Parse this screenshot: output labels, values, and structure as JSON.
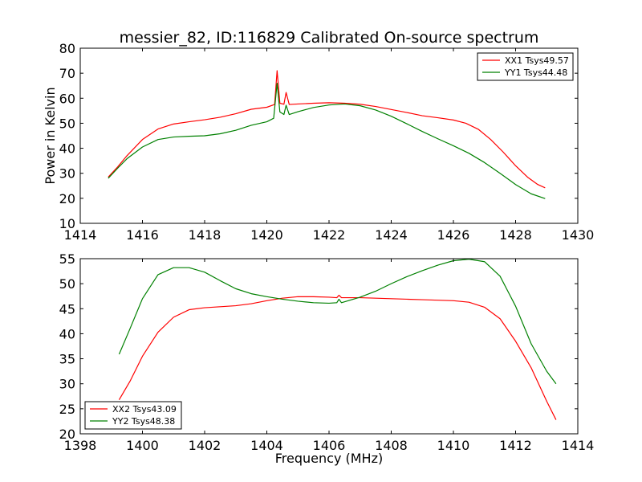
{
  "chart_data": [
    {
      "type": "line",
      "title": "messier_82, ID:116829 Calibrated On-source spectrum",
      "xlabel": "",
      "ylabel": "Power in Kelvin",
      "xlim": [
        1414,
        1430
      ],
      "ylim": [
        10,
        80
      ],
      "xticks": [
        "1414",
        "1416",
        "1418",
        "1420",
        "1422",
        "1424",
        "1426",
        "1428",
        "1430"
      ],
      "yticks": [
        "10",
        "20",
        "30",
        "40",
        "50",
        "60",
        "70",
        "80"
      ],
      "grid": false,
      "legend_position": "top-right",
      "series": [
        {
          "name": "XX1 Tsys49.57",
          "color": "#ff0000",
          "x": [
            1414.9,
            1415.2,
            1415.5,
            1416.0,
            1416.5,
            1417.0,
            1417.5,
            1418.0,
            1418.5,
            1419.0,
            1419.5,
            1420.0,
            1420.25,
            1420.33,
            1420.42,
            1420.55,
            1420.62,
            1420.72,
            1421.0,
            1421.5,
            1422.0,
            1422.5,
            1423.0,
            1423.5,
            1424.0,
            1424.5,
            1425.0,
            1425.5,
            1426.0,
            1426.4,
            1426.8,
            1427.2,
            1427.6,
            1428.0,
            1428.4,
            1428.7,
            1428.95
          ],
          "y": [
            28.5,
            32.5,
            37.0,
            43.5,
            47.7,
            49.7,
            50.6,
            51.4,
            52.4,
            53.8,
            55.6,
            56.4,
            57.5,
            71.0,
            58.0,
            57.6,
            62.3,
            57.5,
            57.7,
            58.0,
            58.2,
            58.0,
            57.6,
            56.7,
            55.5,
            54.3,
            53.0,
            52.2,
            51.3,
            50.0,
            47.6,
            43.5,
            38.5,
            33.0,
            28.3,
            25.6,
            24.2
          ]
        },
        {
          "name": "YY1 Tsys44.48",
          "color": "#008000",
          "x": [
            1414.9,
            1415.2,
            1415.5,
            1416.0,
            1416.5,
            1417.0,
            1417.5,
            1418.0,
            1418.5,
            1419.0,
            1419.5,
            1420.0,
            1420.22,
            1420.33,
            1420.42,
            1420.55,
            1420.62,
            1420.72,
            1421.0,
            1421.5,
            1422.0,
            1422.5,
            1423.0,
            1423.5,
            1424.0,
            1424.5,
            1425.0,
            1425.5,
            1426.0,
            1426.5,
            1427.0,
            1427.5,
            1428.0,
            1428.5,
            1428.95
          ],
          "y": [
            28.0,
            32.0,
            35.8,
            40.5,
            43.5,
            44.5,
            44.8,
            45.0,
            45.8,
            47.2,
            49.2,
            50.6,
            52.0,
            66.0,
            54.5,
            53.5,
            57.2,
            53.5,
            54.6,
            56.3,
            57.3,
            57.7,
            57.0,
            55.3,
            52.8,
            49.8,
            46.7,
            43.8,
            41.0,
            38.0,
            34.3,
            30.0,
            25.5,
            21.8,
            19.9
          ]
        }
      ]
    },
    {
      "type": "line",
      "title": "",
      "xlabel": "Frequency (MHz)",
      "ylabel": "",
      "xlim": [
        1398,
        1414
      ],
      "ylim": [
        20,
        55
      ],
      "xticks": [
        "1398",
        "1400",
        "1402",
        "1404",
        "1406",
        "1408",
        "1410",
        "1412",
        "1414"
      ],
      "yticks": [
        "20",
        "25",
        "30",
        "35",
        "40",
        "45",
        "50",
        "55"
      ],
      "grid": false,
      "legend_position": "bottom-left",
      "series": [
        {
          "name": "XX2 Tsys43.09",
          "color": "#ff0000",
          "x": [
            1399.25,
            1399.6,
            1400.0,
            1400.5,
            1401.0,
            1401.5,
            1402.0,
            1402.5,
            1403.0,
            1403.5,
            1404.0,
            1404.5,
            1405.0,
            1405.5,
            1406.0,
            1406.25,
            1406.32,
            1406.4,
            1407.0,
            1407.5,
            1408.0,
            1408.5,
            1409.0,
            1409.5,
            1410.0,
            1410.5,
            1411.0,
            1411.5,
            1412.0,
            1412.5,
            1413.0,
            1413.3
          ],
          "y": [
            26.8,
            30.5,
            35.5,
            40.3,
            43.3,
            44.8,
            45.2,
            45.4,
            45.6,
            46.0,
            46.6,
            47.1,
            47.4,
            47.4,
            47.3,
            47.2,
            47.7,
            47.2,
            47.2,
            47.1,
            47.0,
            46.9,
            46.8,
            46.7,
            46.6,
            46.3,
            45.3,
            43.0,
            38.5,
            33.2,
            26.5,
            22.8
          ]
        },
        {
          "name": "YY2 Tsys48.38",
          "color": "#008000",
          "x": [
            1399.25,
            1399.6,
            1400.0,
            1400.5,
            1401.0,
            1401.5,
            1402.0,
            1402.5,
            1403.0,
            1403.5,
            1404.0,
            1404.5,
            1405.0,
            1405.5,
            1406.0,
            1406.25,
            1406.32,
            1406.4,
            1407.0,
            1407.5,
            1408.0,
            1408.5,
            1409.0,
            1409.5,
            1410.0,
            1410.5,
            1411.0,
            1411.5,
            1412.0,
            1412.5,
            1413.0,
            1413.3
          ],
          "y": [
            35.9,
            41.0,
            47.0,
            51.8,
            53.2,
            53.2,
            52.3,
            50.6,
            49.0,
            48.0,
            47.4,
            46.9,
            46.5,
            46.2,
            46.1,
            46.2,
            46.9,
            46.2,
            47.3,
            48.5,
            50.0,
            51.4,
            52.6,
            53.7,
            54.6,
            54.9,
            54.4,
            51.5,
            45.5,
            38.0,
            32.5,
            30.0
          ]
        }
      ]
    }
  ]
}
